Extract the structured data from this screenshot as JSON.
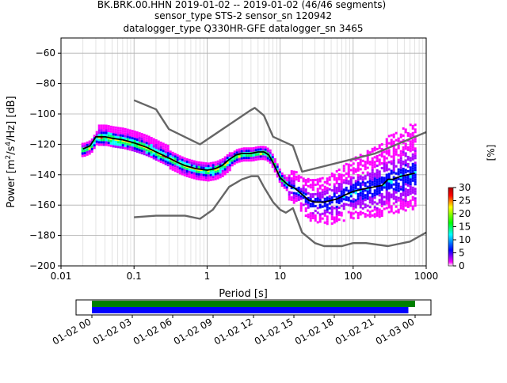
{
  "title": {
    "line1": "BK.BRK.00.HHN   2019-01-02 -- 2019-01-02  (46/46 segments)",
    "line2": "sensor_type STS-2 sensor_sn 120942",
    "line3": "datalogger_type Q330HR-GFE datalogger_sn 3465"
  },
  "chart_data": [
    {
      "type": "heatmap",
      "subtype": "PPSD (probabilistic power spectral density)",
      "xlabel": "Period [s]",
      "ylabel": "Power [m²/s⁴/Hz] [dB]",
      "x_scale": "log",
      "xlim": [
        0.01,
        1000
      ],
      "ylim": [
        -200,
        -50
      ],
      "x_ticks": [
        0.01,
        0.1,
        1,
        10,
        100,
        1000
      ],
      "x_tick_labels": [
        "0.01",
        "0.1",
        "1",
        "10",
        "100",
        "1000"
      ],
      "y_ticks": [
        -200,
        -180,
        -160,
        -140,
        -120,
        -100,
        -80,
        -60
      ],
      "y_tick_labels": [
        "−200",
        "−180",
        "−160",
        "−140",
        "−120",
        "−100",
        "−80",
        "−60"
      ],
      "grid": true,
      "colorbar": {
        "label": "[%]",
        "range": [
          0,
          30
        ],
        "ticks": [
          0,
          5,
          10,
          15,
          20,
          25,
          30
        ]
      },
      "series": [
        {
          "name": "",
          "color": "#000000",
          "points": [
            [
              0.02,
              -123
            ],
            [
              0.025,
              -121
            ],
            [
              0.03,
              -115
            ],
            [
              0.04,
              -115
            ],
            [
              0.05,
              -116
            ],
            [
              0.07,
              -117
            ],
            [
              0.1,
              -119
            ],
            [
              0.15,
              -122
            ],
            [
              0.2,
              -125
            ],
            [
              0.3,
              -129
            ],
            [
              0.4,
              -132
            ],
            [
              0.5,
              -134
            ],
            [
              0.7,
              -136
            ],
            [
              1,
              -137
            ],
            [
              1.3,
              -136
            ],
            [
              1.6,
              -134
            ],
            [
              2,
              -130
            ],
            [
              2.5,
              -127
            ],
            [
              3,
              -126
            ],
            [
              4,
              -126
            ],
            [
              5,
              -125
            ],
            [
              6,
              -125
            ],
            [
              7,
              -127
            ],
            [
              8,
              -132
            ],
            [
              10,
              -142
            ],
            [
              13,
              -147
            ],
            [
              16,
              -149
            ],
            [
              20,
              -153
            ],
            [
              25,
              -157
            ],
            [
              30,
              -158
            ],
            [
              40,
              -158
            ],
            [
              60,
              -156
            ],
            [
              80,
              -153
            ],
            [
              100,
              -151
            ],
            [
              150,
              -149
            ],
            [
              250,
              -147
            ],
            [
              300,
              -143
            ],
            [
              350,
              -143
            ],
            [
              450,
              -141
            ],
            [
              700,
              -139
            ]
          ]
        },
        {
          "name": "",
          "color": "#666666",
          "points": [
            [
              0.1,
              -91
            ],
            [
              0.2,
              -97
            ],
            [
              0.3,
              -110
            ],
            [
              0.8,
              -120
            ],
            [
              3.8,
              -98
            ],
            [
              4.5,
              -96
            ],
            [
              6,
              -101
            ],
            [
              8,
              -115
            ],
            [
              15,
              -121
            ],
            [
              20,
              -138
            ],
            [
              200,
              -126
            ],
            [
              1000,
              -112
            ]
          ]
        },
        {
          "name": "",
          "color": "#666666",
          "points": [
            [
              0.1,
              -168
            ],
            [
              0.2,
              -167
            ],
            [
              0.5,
              -167
            ],
            [
              0.8,
              -169
            ],
            [
              1.2,
              -163
            ],
            [
              2,
              -148
            ],
            [
              3,
              -143
            ],
            [
              4,
              -141
            ],
            [
              5,
              -141
            ],
            [
              6,
              -148
            ],
            [
              8,
              -158
            ],
            [
              10,
              -163
            ],
            [
              12,
              -165
            ],
            [
              15,
              -162
            ],
            [
              20,
              -178
            ],
            [
              30,
              -185
            ],
            [
              40,
              -187
            ],
            [
              70,
              -187
            ],
            [
              100,
              -185
            ],
            [
              150,
              -185
            ],
            [
              300,
              -187
            ],
            [
              600,
              -184
            ],
            [
              1000,
              -178
            ]
          ]
        }
      ]
    },
    {
      "type": "timeline",
      "x_tick_labels": [
        "01-02 00",
        "01-02 03",
        "01-02 06",
        "01-02 09",
        "01-02 12",
        "01-02 15",
        "01-02 18",
        "01-02 21",
        "01-03 00"
      ],
      "bars": [
        {
          "color": "#008000",
          "start_hour": 0,
          "end_hour": 24.0
        },
        {
          "color": "#0000ff",
          "start_hour": 0,
          "end_hour": 23.5
        }
      ]
    }
  ]
}
